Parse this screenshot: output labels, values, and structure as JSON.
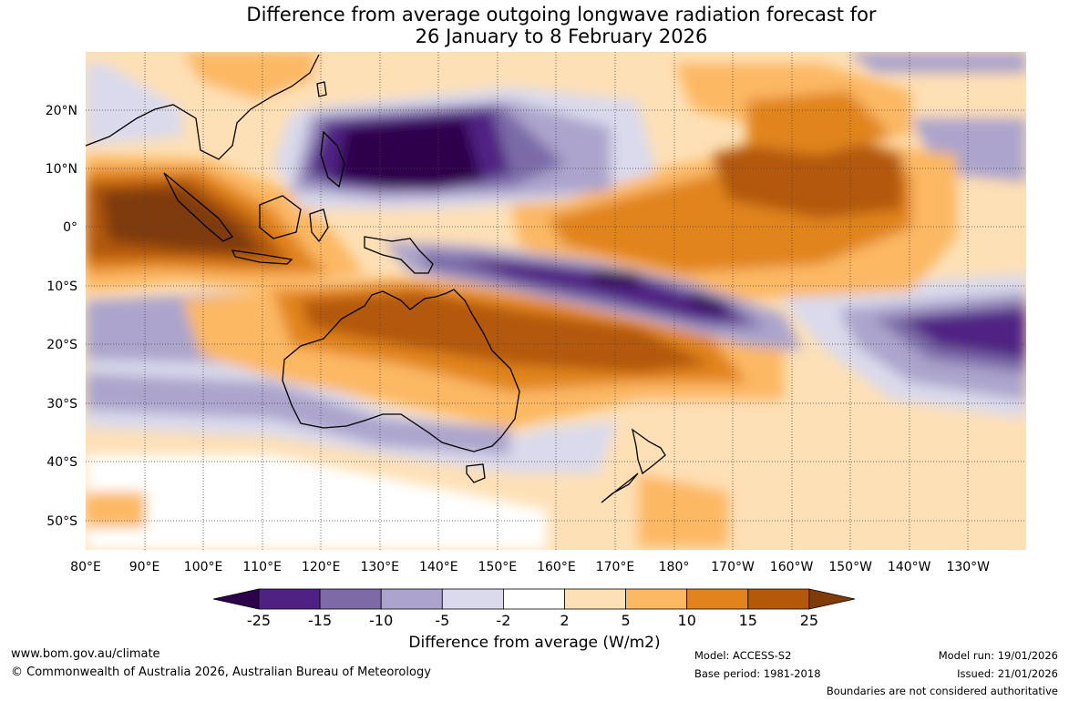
{
  "title": {
    "line1": "Difference from average outgoing longwave radiation forecast for",
    "line2": "26 January to 8 February 2026"
  },
  "axes": {
    "lat_labels": [
      "20°N",
      "10°N",
      "0°",
      "10°S",
      "20°S",
      "30°S",
      "40°S",
      "50°S"
    ],
    "lon_labels": [
      "80°E",
      "90°E",
      "100°E",
      "110°E",
      "120°E",
      "130°E",
      "140°E",
      "150°E",
      "160°E",
      "170°E",
      "180°",
      "170°W",
      "160°W",
      "150°W",
      "140°W",
      "130°W"
    ]
  },
  "colorbar": {
    "labels": [
      "-25",
      "-15",
      "-10",
      "-5",
      "-2",
      "2",
      "5",
      "10",
      "15",
      "25"
    ],
    "colors": [
      "#4f2183",
      "#7c6ba7",
      "#aca4cc",
      "#dadaec",
      "#ffffff",
      "#fee0b6",
      "#fcb863",
      "#e1841e",
      "#b35909",
      "#7f3b08"
    ],
    "extend_low_color": "#2d004b",
    "extend_high_color": "#7f3b08",
    "title": "Difference from average (W/m2)"
  },
  "footer": {
    "url": "www.bom.gov.au/climate",
    "copyright": "© Commonwealth of Australia 2026, Australian Bureau of Meteorology",
    "model": "Model: ACCESS-S2",
    "base_period": "Base period: 1981-2018",
    "model_run": "Model run: 19/01/2026",
    "issued": "Issued: 21/01/2026",
    "disclaimer": "Boundaries are not considered authoritative"
  }
}
